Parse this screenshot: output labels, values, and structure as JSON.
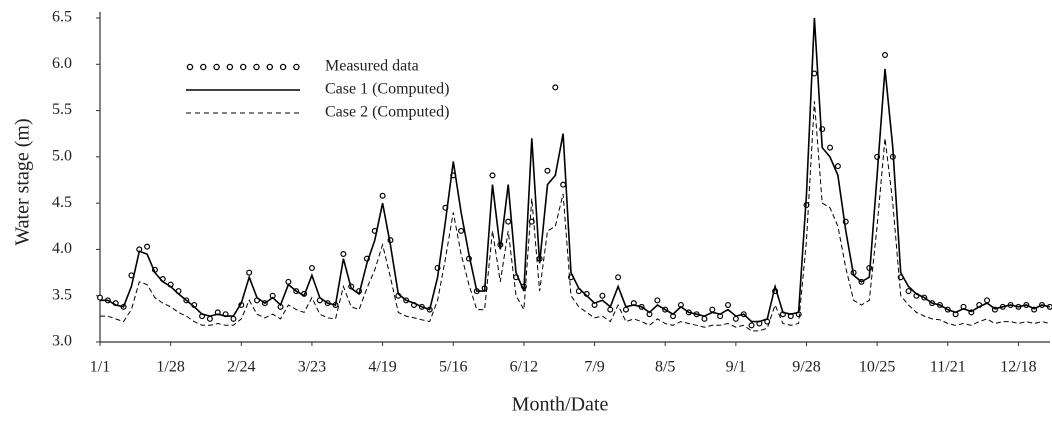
{
  "chart_data": {
    "type": "line",
    "xlabel": "Month/Date",
    "ylabel": "Water stage (m)",
    "categories": [
      "1/1",
      null,
      null,
      null,
      null,
      null,
      null,
      null,
      null,
      "1/28",
      null,
      null,
      null,
      null,
      null,
      null,
      null,
      null,
      "2/24",
      null,
      null,
      null,
      null,
      null,
      null,
      null,
      null,
      "3/23",
      null,
      null,
      null,
      null,
      null,
      null,
      null,
      null,
      "4/19",
      null,
      null,
      null,
      null,
      null,
      null,
      null,
      null,
      "5/16",
      null,
      null,
      null,
      null,
      null,
      null,
      null,
      null,
      "6/12",
      null,
      null,
      null,
      null,
      null,
      null,
      null,
      null,
      "7/9",
      null,
      null,
      null,
      null,
      null,
      null,
      null,
      null,
      "8/5",
      null,
      null,
      null,
      null,
      null,
      null,
      null,
      null,
      "9/1",
      null,
      null,
      null,
      null,
      null,
      null,
      null,
      null,
      "9/28",
      null,
      null,
      null,
      null,
      null,
      null,
      null,
      null,
      "10/25",
      null,
      null,
      null,
      null,
      null,
      null,
      null,
      null,
      "11/21",
      null,
      null,
      null,
      null,
      null,
      null,
      null,
      null,
      "12/18",
      null,
      null,
      null,
      null
    ],
    "series": [
      {
        "name": "Measured data",
        "color": "#000000",
        "style": "markers",
        "values": [
          3.48,
          3.45,
          3.42,
          3.38,
          3.72,
          4.0,
          4.03,
          3.78,
          3.68,
          3.62,
          3.55,
          3.45,
          3.4,
          3.28,
          3.25,
          3.32,
          3.3,
          3.25,
          3.4,
          3.75,
          3.45,
          3.42,
          3.5,
          3.38,
          3.65,
          3.55,
          3.52,
          3.8,
          3.45,
          3.42,
          3.4,
          3.95,
          3.6,
          3.55,
          3.9,
          4.2,
          4.58,
          4.1,
          3.5,
          3.45,
          3.4,
          3.38,
          3.35,
          3.8,
          4.45,
          4.8,
          4.2,
          3.9,
          3.55,
          3.58,
          4.8,
          4.05,
          4.3,
          3.7,
          3.6,
          4.3,
          3.9,
          4.85,
          5.75,
          4.7,
          3.7,
          3.55,
          3.52,
          3.4,
          3.5,
          3.35,
          3.7,
          3.35,
          3.42,
          3.38,
          3.3,
          3.45,
          3.35,
          3.28,
          3.4,
          3.32,
          3.3,
          3.25,
          3.35,
          3.28,
          3.4,
          3.25,
          3.3,
          3.18,
          3.2,
          3.22,
          3.55,
          3.3,
          3.28,
          3.3,
          4.48,
          5.9,
          5.3,
          5.1,
          4.9,
          4.3,
          3.75,
          3.65,
          3.8,
          5.0,
          6.1,
          5.0,
          3.7,
          3.55,
          3.5,
          3.48,
          3.42,
          3.4,
          3.35,
          3.3,
          3.38,
          3.32,
          3.4,
          3.45,
          3.35,
          3.38,
          3.4,
          3.38,
          3.4,
          3.35,
          3.4,
          3.38
        ]
      },
      {
        "name": "Case 1 (Computed)",
        "color": "#000000",
        "style": "solid",
        "values": [
          3.45,
          3.45,
          3.4,
          3.38,
          3.6,
          3.98,
          3.95,
          3.75,
          3.65,
          3.6,
          3.52,
          3.45,
          3.38,
          3.3,
          3.28,
          3.3,
          3.28,
          3.28,
          3.42,
          3.7,
          3.48,
          3.42,
          3.48,
          3.4,
          3.62,
          3.55,
          3.5,
          3.72,
          3.48,
          3.42,
          3.4,
          3.9,
          3.58,
          3.52,
          3.85,
          4.1,
          4.5,
          4.05,
          3.52,
          3.45,
          3.42,
          3.38,
          3.35,
          3.7,
          4.3,
          4.95,
          4.4,
          3.95,
          3.55,
          3.55,
          4.7,
          4.0,
          4.7,
          3.75,
          3.55,
          5.2,
          3.85,
          4.7,
          4.8,
          5.25,
          3.75,
          3.58,
          3.5,
          3.42,
          3.45,
          3.38,
          3.6,
          3.38,
          3.4,
          3.38,
          3.32,
          3.4,
          3.35,
          3.3,
          3.38,
          3.32,
          3.3,
          3.28,
          3.32,
          3.3,
          3.35,
          3.28,
          3.3,
          3.22,
          3.22,
          3.25,
          3.6,
          3.32,
          3.3,
          3.32,
          4.6,
          6.5,
          5.1,
          5.0,
          4.8,
          4.2,
          3.72,
          3.65,
          3.7,
          4.8,
          5.95,
          5.1,
          3.75,
          3.6,
          3.52,
          3.48,
          3.42,
          3.4,
          3.35,
          3.32,
          3.36,
          3.33,
          3.38,
          3.42,
          3.36,
          3.38,
          3.4,
          3.38,
          3.4,
          3.36,
          3.4,
          3.38
        ]
      },
      {
        "name": "Case 2 (Computed)",
        "color": "#000000",
        "style": "dashed",
        "values": [
          3.28,
          3.28,
          3.25,
          3.22,
          3.35,
          3.65,
          3.62,
          3.48,
          3.42,
          3.38,
          3.32,
          3.28,
          3.22,
          3.18,
          3.18,
          3.2,
          3.18,
          3.18,
          3.25,
          3.45,
          3.3,
          3.26,
          3.3,
          3.25,
          3.4,
          3.35,
          3.32,
          3.48,
          3.3,
          3.26,
          3.25,
          3.6,
          3.38,
          3.35,
          3.58,
          3.78,
          4.05,
          3.7,
          3.32,
          3.28,
          3.26,
          3.24,
          3.22,
          3.45,
          3.9,
          4.4,
          3.95,
          3.62,
          3.35,
          3.35,
          4.2,
          3.65,
          4.2,
          3.5,
          3.35,
          4.55,
          3.55,
          4.2,
          4.25,
          4.6,
          3.5,
          3.38,
          3.32,
          3.26,
          3.28,
          3.22,
          3.4,
          3.22,
          3.25,
          3.22,
          3.18,
          3.25,
          3.2,
          3.18,
          3.22,
          3.2,
          3.18,
          3.16,
          3.18,
          3.18,
          3.2,
          3.16,
          3.18,
          3.12,
          3.12,
          3.15,
          3.4,
          3.2,
          3.18,
          3.2,
          4.1,
          5.6,
          4.5,
          4.45,
          4.25,
          3.8,
          3.45,
          3.4,
          3.45,
          4.25,
          5.2,
          4.5,
          3.5,
          3.4,
          3.32,
          3.28,
          3.25,
          3.24,
          3.2,
          3.18,
          3.2,
          3.18,
          3.22,
          3.25,
          3.2,
          3.22,
          3.22,
          3.2,
          3.22,
          3.2,
          3.22,
          3.2
        ]
      }
    ],
    "ylim": [
      3,
      6.5
    ],
    "yticks": [
      {
        "value": 3,
        "label": "3.0"
      },
      3.5,
      {
        "value": 4,
        "label": "4.0"
      },
      4.5,
      {
        "value": 5,
        "label": "5.0"
      },
      5.5,
      {
        "value": 6,
        "label": "6.0"
      },
      6.5
    ],
    "grid": false,
    "legend": "upper left"
  }
}
